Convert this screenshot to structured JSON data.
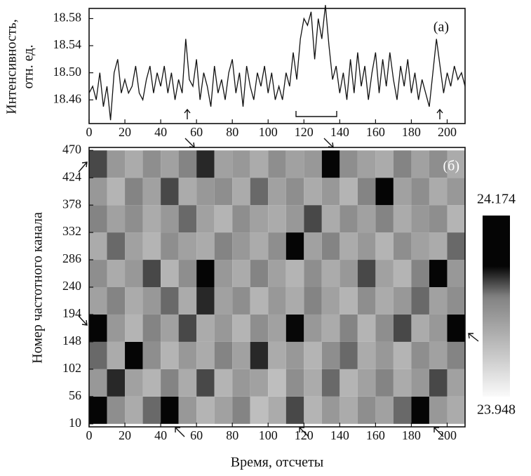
{
  "chart_data": [
    {
      "type": "line",
      "panel_label": "(a)",
      "ylabel": [
        "Интенсивность,",
        "отн. ед."
      ],
      "color": "#111111",
      "x": [
        0,
        2,
        4,
        6,
        8,
        10,
        12,
        14,
        16,
        18,
        20,
        22,
        24,
        26,
        28,
        30,
        32,
        34,
        36,
        38,
        40,
        42,
        44,
        46,
        48,
        50,
        52,
        54,
        56,
        58,
        60,
        62,
        64,
        66,
        68,
        70,
        72,
        74,
        76,
        78,
        80,
        82,
        84,
        86,
        88,
        90,
        92,
        94,
        96,
        98,
        100,
        102,
        104,
        106,
        108,
        110,
        112,
        114,
        116,
        118,
        120,
        122,
        124,
        126,
        128,
        130,
        132,
        134,
        136,
        138,
        140,
        142,
        144,
        146,
        148,
        150,
        152,
        154,
        156,
        158,
        160,
        162,
        164,
        166,
        168,
        170,
        172,
        174,
        176,
        178,
        180,
        182,
        184,
        186,
        188,
        190,
        192,
        194,
        196,
        198,
        200,
        202,
        204,
        206,
        208,
        210
      ],
      "values": [
        18.47,
        18.48,
        18.46,
        18.5,
        18.45,
        18.48,
        18.43,
        18.5,
        18.52,
        18.47,
        18.49,
        18.47,
        18.48,
        18.51,
        18.47,
        18.46,
        18.49,
        18.51,
        18.47,
        18.5,
        18.48,
        18.51,
        18.47,
        18.5,
        18.46,
        18.49,
        18.47,
        18.55,
        18.49,
        18.48,
        18.52,
        18.46,
        18.5,
        18.48,
        18.45,
        18.51,
        18.47,
        18.49,
        18.46,
        18.5,
        18.52,
        18.47,
        18.5,
        18.45,
        18.51,
        18.48,
        18.46,
        18.5,
        18.48,
        18.51,
        18.47,
        18.5,
        18.46,
        18.48,
        18.46,
        18.5,
        18.48,
        18.53,
        18.49,
        18.55,
        18.58,
        18.57,
        18.59,
        18.52,
        18.58,
        18.55,
        18.6,
        18.54,
        18.49,
        18.51,
        18.47,
        18.5,
        18.46,
        18.52,
        18.47,
        18.53,
        18.48,
        18.51,
        18.46,
        18.5,
        18.53,
        18.47,
        18.52,
        18.48,
        18.53,
        18.49,
        18.46,
        18.51,
        18.48,
        18.52,
        18.47,
        18.5,
        18.46,
        18.49,
        18.47,
        18.45,
        18.5,
        18.55,
        18.51,
        18.47,
        18.5,
        18.48,
        18.51,
        18.49,
        18.5,
        18.48
      ],
      "xlim": [
        0,
        210
      ],
      "xticks": [
        0,
        20,
        40,
        60,
        80,
        100,
        120,
        140,
        160,
        180,
        200
      ],
      "ylim": [
        18.425,
        18.595
      ],
      "yticks": [
        18.46,
        {
          "value": 18.5,
          "label": "18.50"
        },
        18.54,
        18.58
      ]
    },
    {
      "type": "heatmap",
      "panel_label": "(б)",
      "xlabel": "Время, отсчеты",
      "ylabel": "Номер частотного канала",
      "x": [
        5,
        15,
        25,
        35,
        45,
        55,
        65,
        75,
        85,
        95,
        105,
        115,
        125,
        135,
        145,
        155,
        165,
        175,
        185,
        195,
        205
      ],
      "y": [
        33,
        79,
        125,
        171,
        217,
        263,
        309,
        355,
        401,
        447
      ],
      "z": [
        [
          24.15,
          24.06,
          24.03,
          24.08,
          24.12,
          24.05,
          24.02,
          24.04,
          24.07,
          24.01,
          24.03,
          24.09,
          24.02,
          24.05,
          24.03,
          24.06,
          24.04,
          24.08,
          24.13,
          24.05,
          24.03
        ],
        [
          24.05,
          24.1,
          24.04,
          24.02,
          24.07,
          24.03,
          24.09,
          24.02,
          24.05,
          24.04,
          24.01,
          24.06,
          24.03,
          24.08,
          24.02,
          24.04,
          24.07,
          24.03,
          24.05,
          24.09,
          24.04
        ],
        [
          24.08,
          24.03,
          24.13,
          24.06,
          24.02,
          24.05,
          24.03,
          24.07,
          24.04,
          24.1,
          24.03,
          24.05,
          24.02,
          24.06,
          24.08,
          24.03,
          24.05,
          24.02,
          24.06,
          24.04,
          24.07
        ],
        [
          24.12,
          24.05,
          24.02,
          24.07,
          24.04,
          24.09,
          24.03,
          24.05,
          24.02,
          24.06,
          24.04,
          24.11,
          24.05,
          24.03,
          24.07,
          24.02,
          24.06,
          24.09,
          24.03,
          24.05,
          24.14
        ],
        [
          24.04,
          24.07,
          24.03,
          24.05,
          24.08,
          24.03,
          24.1,
          24.04,
          24.06,
          24.02,
          24.05,
          24.03,
          24.07,
          24.04,
          24.02,
          24.06,
          24.03,
          24.05,
          24.08,
          24.04,
          24.06
        ],
        [
          24.06,
          24.03,
          24.05,
          24.09,
          24.02,
          24.06,
          24.15,
          24.05,
          24.03,
          24.07,
          24.04,
          24.02,
          24.06,
          24.03,
          24.05,
          24.09,
          24.04,
          24.02,
          24.07,
          24.13,
          24.05
        ],
        [
          24.03,
          24.08,
          24.04,
          24.02,
          24.06,
          24.04,
          24.03,
          24.07,
          24.05,
          24.03,
          24.06,
          24.12,
          24.04,
          24.07,
          24.03,
          24.05,
          24.02,
          24.06,
          24.04,
          24.03,
          24.08
        ],
        [
          24.07,
          24.04,
          24.06,
          24.03,
          24.05,
          24.08,
          24.04,
          24.02,
          24.06,
          24.04,
          24.03,
          24.05,
          24.09,
          24.03,
          24.06,
          24.04,
          24.07,
          24.03,
          24.05,
          24.06,
          24.02
        ],
        [
          24.05,
          24.02,
          24.07,
          24.04,
          24.09,
          24.03,
          24.05,
          24.06,
          24.03,
          24.08,
          24.04,
          24.06,
          24.03,
          24.05,
          24.02,
          24.07,
          24.14,
          24.04,
          24.06,
          24.03,
          24.05
        ],
        [
          24.09,
          24.05,
          24.03,
          24.06,
          24.04,
          24.07,
          24.1,
          24.04,
          24.05,
          24.03,
          24.06,
          24.04,
          24.05,
          24.16,
          24.06,
          24.04,
          24.03,
          24.07,
          24.04,
          24.06,
          24.03
        ]
      ],
      "xlim": [
        0,
        210
      ],
      "xticks": [
        0,
        20,
        40,
        60,
        80,
        100,
        120,
        140,
        160,
        180,
        200
      ],
      "ylim": [
        5,
        475
      ],
      "yticks": [
        10,
        56,
        102,
        148,
        194,
        240,
        286,
        332,
        378,
        424,
        470
      ],
      "zlim": [
        23.948,
        24.174
      ],
      "zticks": [
        23.948,
        24.174
      ]
    }
  ]
}
